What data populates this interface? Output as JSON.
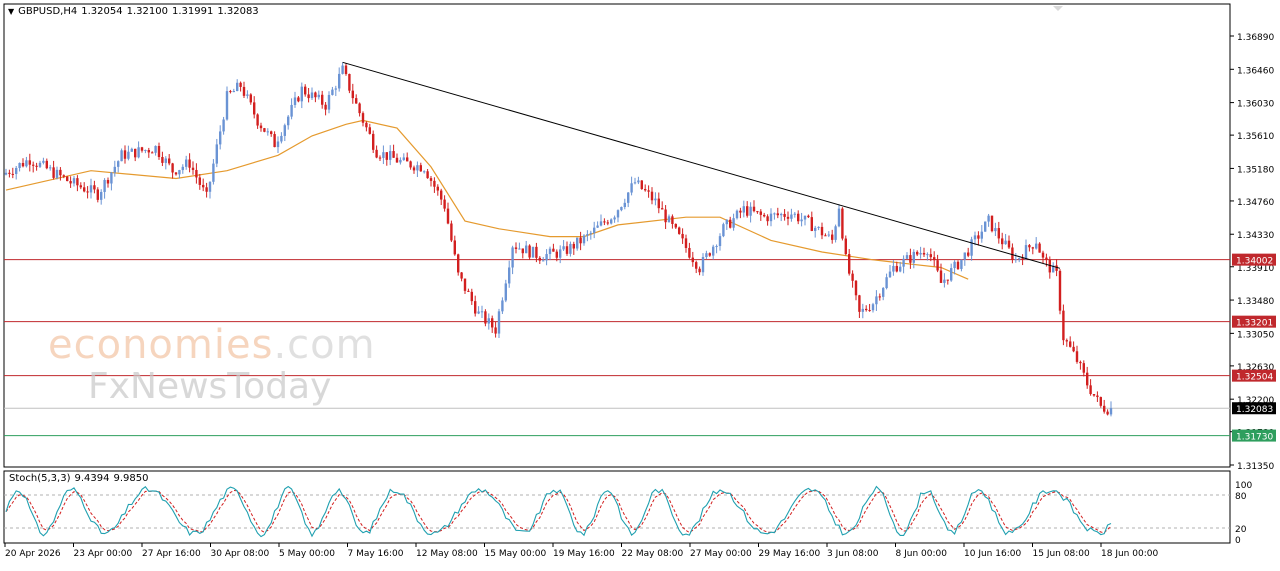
{
  "header": {
    "symbol": "GBPUSD,H4",
    "open": "1.32054",
    "high": "1.32100",
    "low": "1.31991",
    "close": "1.32083"
  },
  "watermark": {
    "brand_part1": "econo",
    "brand_part2": "mies",
    "brand_part3": ".com",
    "brand_line2": "FxNewsToday"
  },
  "colors": {
    "bull": "#6a93d4",
    "bear": "#d21f1f",
    "ma": "#e59a2e",
    "trendline": "#000000",
    "res_line": "#c0282d",
    "sup_line": "#2e9e5e",
    "stoch_main": "#20a0b0",
    "stoch_signal": "#d21f1f"
  },
  "chart_data": {
    "type": "candlestick",
    "price_axis_ticks": [
      "1.36890",
      "1.36460",
      "1.36030",
      "1.35610",
      "1.35180",
      "1.34760",
      "1.34330",
      "1.33910",
      "1.33480",
      "1.33050",
      "1.32630",
      "1.32200",
      "1.31780",
      "1.31350"
    ],
    "time_axis_labels": [
      "20 Apr 2026",
      "23 Apr 00:00",
      "27 Apr 16:00",
      "30 Apr 08:00",
      "5 May 00:00",
      "7 May 16:00",
      "12 May 08:00",
      "15 May 00:00",
      "19 May 16:00",
      "22 May 08:00",
      "27 May 00:00",
      "29 May 16:00",
      "3 Jun 08:00",
      "8 Jun 00:00",
      "10 Jun 16:00",
      "15 Jun 08:00",
      "18 Jun 00:00"
    ],
    "y_range": [
      1.3117,
      1.3707
    ],
    "horizontal_levels": [
      {
        "label": "1.34002",
        "value": 1.34002,
        "kind": "resistance"
      },
      {
        "label": "1.33201",
        "value": 1.33201,
        "kind": "resistance"
      },
      {
        "label": "1.32504",
        "value": 1.32504,
        "kind": "resistance"
      },
      {
        "label": "1.32083",
        "value": 1.32083,
        "kind": "current"
      },
      {
        "label": "1.31730",
        "value": 1.3173,
        "kind": "support"
      }
    ],
    "trendline": {
      "start": {
        "bar": 99,
        "price": 1.3655
      },
      "end": {
        "bar": 310,
        "price": 1.3389
      }
    },
    "moving_average_points": [
      [
        0,
        1.349
      ],
      [
        25,
        1.3515
      ],
      [
        50,
        1.3505
      ],
      [
        65,
        1.3515
      ],
      [
        80,
        1.3535
      ],
      [
        90,
        1.356
      ],
      [
        100,
        1.3575
      ],
      [
        105,
        1.358
      ],
      [
        115,
        1.357
      ],
      [
        125,
        1.352
      ],
      [
        135,
        1.345
      ],
      [
        145,
        1.344
      ],
      [
        160,
        1.343
      ],
      [
        170,
        1.343
      ],
      [
        180,
        1.3445
      ],
      [
        200,
        1.3455
      ],
      [
        210,
        1.3455
      ],
      [
        225,
        1.3425
      ],
      [
        240,
        1.341
      ],
      [
        255,
        1.34
      ],
      [
        265,
        1.3395
      ],
      [
        275,
        1.339
      ],
      [
        283,
        1.3375
      ]
    ],
    "stoch_indicator": {
      "label": "Stoch(5,3,3)",
      "main_value": "9.4394",
      "signal_value": "9.9850",
      "levels": [
        "100",
        "80",
        "20",
        "0"
      ]
    }
  }
}
